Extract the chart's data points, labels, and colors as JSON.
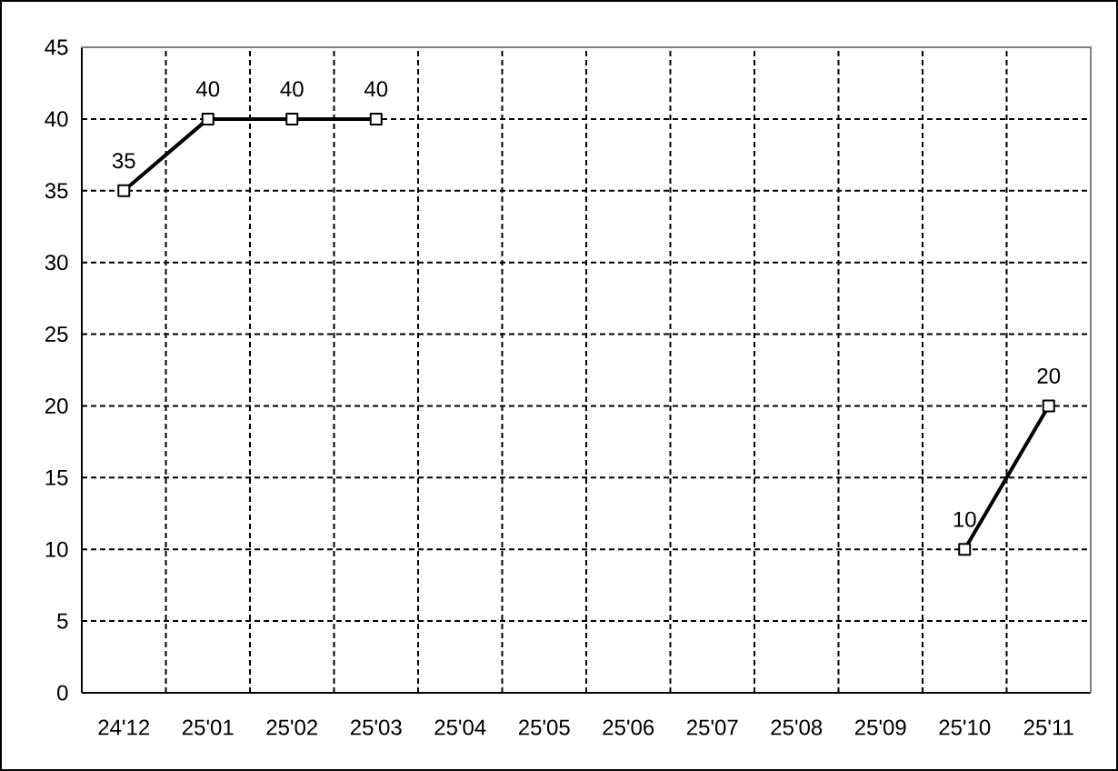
{
  "chart_data": {
    "type": "line",
    "categories": [
      "24'12",
      "25'01",
      "25'02",
      "25'03",
      "25'04",
      "25'05",
      "25'06",
      "25'07",
      "25'08",
      "25'09",
      "25'10",
      "25'11"
    ],
    "values": [
      35,
      40,
      40,
      40,
      null,
      null,
      null,
      null,
      null,
      null,
      10,
      20
    ],
    "color": "#000000",
    "ylim": [
      0,
      45
    ],
    "yticks": [
      0,
      5,
      10,
      15,
      20,
      25,
      30,
      35,
      40,
      45
    ],
    "grid": true,
    "marker": "square",
    "line_style": "solid",
    "data_labels": true
  }
}
